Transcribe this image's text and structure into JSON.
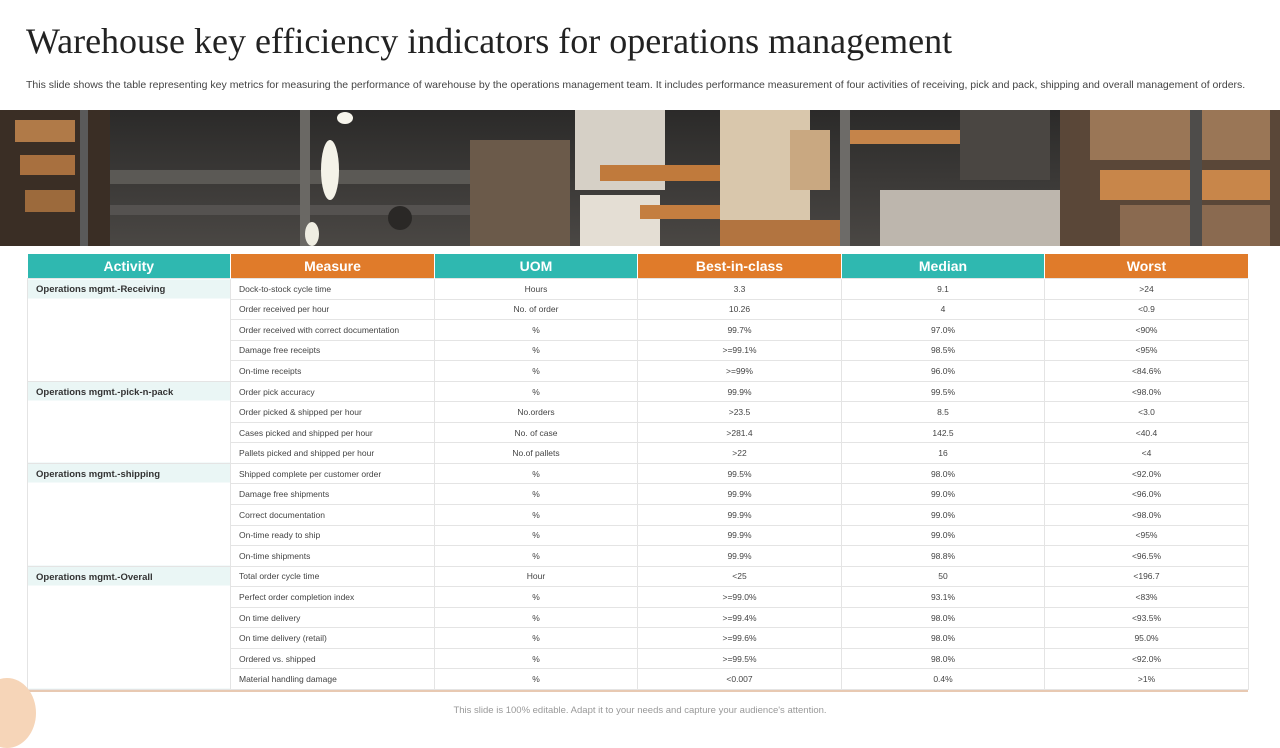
{
  "title": "Warehouse key efficiency indicators for operations management",
  "subtitle": "This slide shows the table representing key metrics for measuring the performance of warehouse by the operations management team. It includes performance measurement of four activities of receiving, pick and pack, shipping and overall management of orders.",
  "banner": {
    "icon": "warehouse-shelves-photo"
  },
  "table": {
    "headers": [
      "Activity",
      "Measure",
      "UOM",
      "Best-in-class",
      "Median",
      "Worst"
    ],
    "groups": [
      {
        "activity": "Operations mgmt.-Receiving",
        "rows": [
          [
            "Dock-to-stock cycle time",
            "Hours",
            "3.3",
            "9.1",
            ">24"
          ],
          [
            "Order received per hour",
            "No. of order",
            "10.26",
            "4",
            "<0.9"
          ],
          [
            "Order received with correct documentation",
            "%",
            "99.7%",
            "97.0%",
            "<90%"
          ],
          [
            "Damage free receipts",
            "%",
            ">=99.1%",
            "98.5%",
            "<95%"
          ],
          [
            "On-time receipts",
            "%",
            ">=99%",
            "96.0%",
            "<84.6%"
          ]
        ]
      },
      {
        "activity": "Operations mgmt.-pick-n-pack",
        "rows": [
          [
            "Order pick accuracy",
            "%",
            "99.9%",
            "99.5%",
            "<98.0%"
          ],
          [
            "Order picked & shipped per hour",
            "No.orders",
            ">23.5",
            "8.5",
            "<3.0"
          ],
          [
            "Cases picked and shipped per hour",
            "No. of case",
            ">281.4",
            "142.5",
            "<40.4"
          ],
          [
            "Pallets picked and shipped per hour",
            "No.of pallets",
            ">22",
            "16",
            "<4"
          ]
        ]
      },
      {
        "activity": "Operations mgmt.-shipping",
        "rows": [
          [
            "Shipped complete per customer order",
            "%",
            "99.5%",
            "98.0%",
            "<92.0%"
          ],
          [
            "Damage free shipments",
            "%",
            "99.9%",
            "99.0%",
            "<96.0%"
          ],
          [
            "Correct documentation",
            "%",
            "99.9%",
            "99.0%",
            "<98.0%"
          ],
          [
            "On-time ready to ship",
            "%",
            "99.9%",
            "99.0%",
            "<95%"
          ],
          [
            "On-time shipments",
            "%",
            "99.9%",
            "98.8%",
            "<96.5%"
          ]
        ]
      },
      {
        "activity": "Operations mgmt.-Overall",
        "rows": [
          [
            "Total order cycle time",
            "Hour",
            "<25",
            "50",
            "<196.7"
          ],
          [
            "Perfect order completion index",
            "%",
            ">=99.0%",
            "93.1%",
            "<83%"
          ],
          [
            "On time delivery",
            "%",
            ">=99.4%",
            "98.0%",
            "<93.5%"
          ],
          [
            "On time delivery (retail)",
            "%",
            ">=99.6%",
            "98.0%",
            "95.0%"
          ],
          [
            "Ordered  vs. shipped",
            "%",
            ">=99.5%",
            "98.0%",
            "<92.0%"
          ],
          [
            "Material handling damage",
            "%",
            "<0.007",
            "0.4%",
            ">1%"
          ]
        ]
      }
    ]
  },
  "footer": "This slide is 100% editable. Adapt it to your needs and capture your audience's attention.",
  "colors": {
    "teal": "#2fb8b0",
    "orange": "#e07b2a",
    "activity_bg": "#eaf6f5"
  }
}
